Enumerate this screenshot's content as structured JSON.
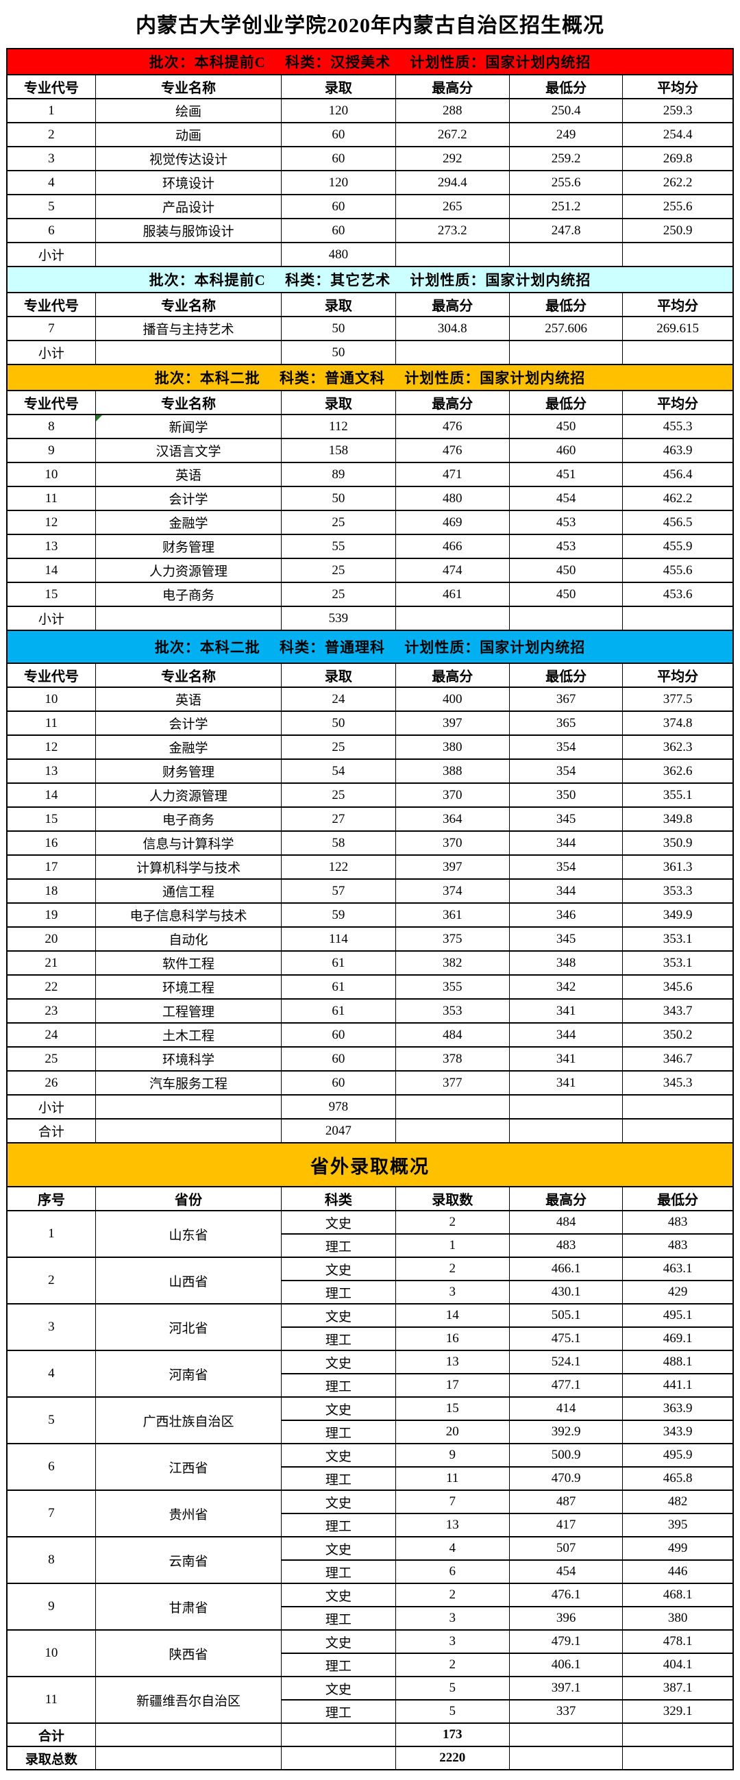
{
  "page": {
    "title": "内蒙古大学创业学院2020年内蒙古自治区招生概况"
  },
  "colors": {
    "banner_red": "#ff0000",
    "banner_pale_cyan": "#ccffff",
    "banner_gold": "#ffc000",
    "banner_bright_cyan": "#00b0f0",
    "marker_green": "#1f7a1f",
    "border": "#000000"
  },
  "major_columns": [
    "专业代号",
    "专业名称",
    "录取",
    "最高分",
    "最低分",
    "平均分"
  ],
  "sections": [
    {
      "banner": {
        "text": "批次：本科提前C　 科类：汉授美术　 计划性质：国家计划内统招",
        "bg": "#ff0000",
        "variant": "normal"
      },
      "rows": [
        [
          "1",
          "绘画",
          "120",
          "288",
          "250.4",
          "259.3"
        ],
        [
          "2",
          "动画",
          "60",
          "267.2",
          "249",
          "254.4"
        ],
        [
          "3",
          "视觉传达设计",
          "60",
          "292",
          "259.2",
          "269.8"
        ],
        [
          "4",
          "环境设计",
          "120",
          "294.4",
          "255.6",
          "262.2"
        ],
        [
          "5",
          "产品设计",
          "60",
          "265",
          "251.2",
          "255.6"
        ],
        [
          "6",
          "服装与服饰设计",
          "60",
          "273.2",
          "247.8",
          "250.9"
        ],
        [
          "小计",
          "",
          "480",
          "",
          "",
          ""
        ]
      ]
    },
    {
      "banner": {
        "text": "批次：本科提前C　 科类：其它艺术　 计划性质：国家计划内统招",
        "bg": "#ccffff",
        "variant": "normal"
      },
      "rows": [
        [
          "7",
          "播音与主持艺术",
          "50",
          "304.8",
          "257.606",
          "269.615"
        ],
        [
          "小计",
          "",
          "50",
          "",
          "",
          ""
        ]
      ]
    },
    {
      "banner": {
        "text": "批次：本科二批　 科类：普通文科　 计划性质：国家计划内统招",
        "bg": "#ffc000",
        "variant": "normal"
      },
      "marker": {
        "row": 0,
        "col": 1
      },
      "rows": [
        [
          "8",
          "新闻学",
          "112",
          "476",
          "450",
          "455.3"
        ],
        [
          "9",
          "汉语言文学",
          "158",
          "476",
          "460",
          "463.9"
        ],
        [
          "10",
          "英语",
          "89",
          "471",
          "451",
          "456.4"
        ],
        [
          "11",
          "会计学",
          "50",
          "480",
          "454",
          "462.2"
        ],
        [
          "12",
          "金融学",
          "25",
          "469",
          "453",
          "456.5"
        ],
        [
          "13",
          "财务管理",
          "55",
          "466",
          "453",
          "455.9"
        ],
        [
          "14",
          "人力资源管理",
          "25",
          "474",
          "450",
          "455.6"
        ],
        [
          "15",
          "电子商务",
          "25",
          "461",
          "450",
          "453.6"
        ],
        [
          "小计",
          "",
          "539",
          "",
          "",
          ""
        ]
      ]
    },
    {
      "banner": {
        "text": "批次：本科二批　 科类：普通理科　 计划性质：国家计划内统招",
        "bg": "#00b0f0",
        "variant": "tall"
      },
      "rows": [
        [
          "10",
          "英语",
          "24",
          "400",
          "367",
          "377.5"
        ],
        [
          "11",
          "会计学",
          "50",
          "397",
          "365",
          "374.8"
        ],
        [
          "12",
          "金融学",
          "25",
          "380",
          "354",
          "362.3"
        ],
        [
          "13",
          "财务管理",
          "54",
          "388",
          "354",
          "362.6"
        ],
        [
          "14",
          "人力资源管理",
          "25",
          "370",
          "350",
          "355.1"
        ],
        [
          "15",
          "电子商务",
          "27",
          "364",
          "345",
          "349.8"
        ],
        [
          "16",
          "信息与计算科学",
          "58",
          "370",
          "344",
          "350.9"
        ],
        [
          "17",
          "计算机科学与技术",
          "122",
          "397",
          "354",
          "361.3"
        ],
        [
          "18",
          "通信工程",
          "57",
          "374",
          "344",
          "353.3"
        ],
        [
          "19",
          "电子信息科学与技术",
          "59",
          "361",
          "346",
          "349.9"
        ],
        [
          "20",
          "自动化",
          "114",
          "375",
          "345",
          "353.1"
        ],
        [
          "21",
          "软件工程",
          "61",
          "382",
          "348",
          "353.1"
        ],
        [
          "22",
          "环境工程",
          "61",
          "355",
          "342",
          "345.6"
        ],
        [
          "23",
          "工程管理",
          "61",
          "353",
          "341",
          "343.7"
        ],
        [
          "24",
          "土木工程",
          "60",
          "484",
          "344",
          "350.2"
        ],
        [
          "25",
          "环境科学",
          "60",
          "378",
          "341",
          "346.7"
        ],
        [
          "26",
          "汽车服务工程",
          "60",
          "377",
          "341",
          "345.3"
        ],
        [
          "小计",
          "",
          "978",
          "",
          "",
          ""
        ],
        [
          "合计",
          "",
          "2047",
          "",
          "",
          ""
        ]
      ]
    }
  ],
  "province_section": {
    "banner": {
      "text": "省外录取概况",
      "bg": "#ffc000",
      "variant": "big"
    },
    "columns": [
      "序号",
      "省份",
      "科类",
      "录取数",
      "最高分",
      "最低分"
    ],
    "provinces": [
      {
        "no": "1",
        "name": "山东省",
        "rows": [
          [
            "文史",
            "2",
            "484",
            "483"
          ],
          [
            "理工",
            "1",
            "483",
            "483"
          ]
        ]
      },
      {
        "no": "2",
        "name": "山西省",
        "rows": [
          [
            "文史",
            "2",
            "466.1",
            "463.1"
          ],
          [
            "理工",
            "3",
            "430.1",
            "429"
          ]
        ]
      },
      {
        "no": "3",
        "name": "河北省",
        "rows": [
          [
            "文史",
            "14",
            "505.1",
            "495.1"
          ],
          [
            "理工",
            "16",
            "475.1",
            "469.1"
          ]
        ]
      },
      {
        "no": "4",
        "name": "河南省",
        "rows": [
          [
            "文史",
            "13",
            "524.1",
            "488.1"
          ],
          [
            "理工",
            "17",
            "477.1",
            "441.1"
          ]
        ]
      },
      {
        "no": "5",
        "name": "广西壮族自治区",
        "rows": [
          [
            "文史",
            "15",
            "414",
            "363.9"
          ],
          [
            "理工",
            "20",
            "392.9",
            "343.9"
          ]
        ]
      },
      {
        "no": "6",
        "name": "江西省",
        "rows": [
          [
            "文史",
            "9",
            "500.9",
            "495.9"
          ],
          [
            "理工",
            "11",
            "470.9",
            "465.8"
          ]
        ]
      },
      {
        "no": "7",
        "name": "贵州省",
        "rows": [
          [
            "文史",
            "7",
            "487",
            "482"
          ],
          [
            "理工",
            "13",
            "417",
            "395"
          ]
        ]
      },
      {
        "no": "8",
        "name": "云南省",
        "rows": [
          [
            "文史",
            "4",
            "507",
            "499"
          ],
          [
            "理工",
            "6",
            "454",
            "446"
          ]
        ]
      },
      {
        "no": "9",
        "name": "甘肃省",
        "rows": [
          [
            "文史",
            "2",
            "476.1",
            "468.1"
          ],
          [
            "理工",
            "3",
            "396",
            "380"
          ]
        ]
      },
      {
        "no": "10",
        "name": "陕西省",
        "rows": [
          [
            "文史",
            "3",
            "479.1",
            "478.1"
          ],
          [
            "理工",
            "2",
            "406.1",
            "404.1"
          ]
        ]
      },
      {
        "no": "11",
        "name": "新疆维吾尔自治区",
        "rows": [
          [
            "文史",
            "5",
            "397.1",
            "387.1"
          ],
          [
            "理工",
            "5",
            "337",
            "329.1"
          ]
        ]
      }
    ],
    "totals": [
      {
        "label": "合计",
        "value": "173",
        "bold": true
      },
      {
        "label": "录取总数",
        "value": "2220",
        "bold": true
      }
    ]
  }
}
